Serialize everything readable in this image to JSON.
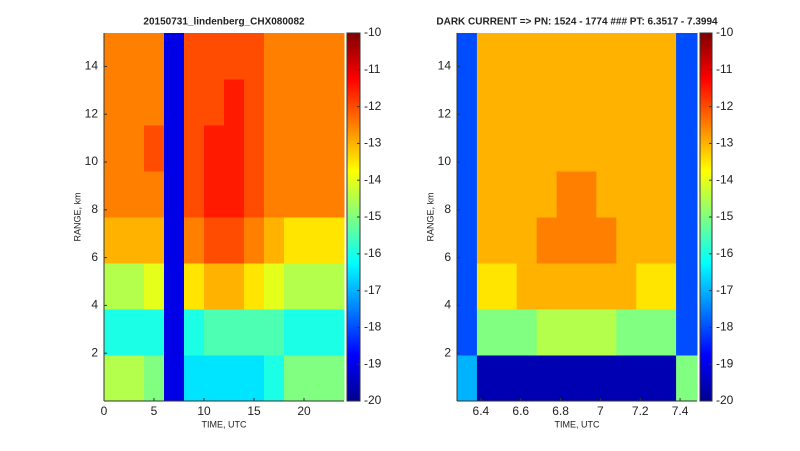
{
  "chart_data": [
    {
      "type": "heatmap",
      "title": "20150731_lindenberg_CHX080082",
      "x_label": "TIME, UTC",
      "y_label": "RANGE, km",
      "xlim": [
        0,
        24
      ],
      "xticks": [
        0,
        5,
        10,
        15,
        20
      ],
      "ylim": [
        0,
        15.4
      ],
      "yticks": [
        2,
        4,
        6,
        8,
        10,
        12,
        14
      ],
      "clim": [
        -20,
        -10
      ],
      "cticks": [
        -10,
        -11,
        -12,
        -13,
        -14,
        -15,
        -16,
        -17,
        -18,
        -19,
        -20
      ],
      "colormap": "jet",
      "x_edges": [
        0,
        2,
        4,
        6,
        8,
        10,
        12,
        14,
        16,
        18,
        20,
        22,
        24
      ],
      "y_edges": [
        0,
        1.925,
        3.85,
        5.775,
        7.7,
        9.625,
        11.55,
        13.475,
        15.4
      ],
      "z": [
        [
          -14.5,
          -14.5,
          -15,
          -19,
          -16.5,
          -16.5,
          -16.5,
          -16.5,
          -16,
          -15,
          -15,
          -15
        ],
        [
          -16,
          -16,
          -16,
          -19,
          -16,
          -15.5,
          -15.5,
          -15.5,
          -15.5,
          -16,
          -16,
          -16
        ],
        [
          -14.5,
          -14.5,
          -14,
          -19,
          -13.5,
          -13,
          -13,
          -13.5,
          -14,
          -14.5,
          -14.5,
          -14.5
        ],
        [
          -13,
          -13,
          -13,
          -19,
          -12.5,
          -12,
          -12,
          -12.5,
          -13,
          -13.5,
          -13.5,
          -13.5
        ],
        [
          -12.5,
          -12.5,
          -12.5,
          -19,
          -12,
          -11.5,
          -11.5,
          -12,
          -12.5,
          -12.5,
          -12.5,
          -12.5
        ],
        [
          -12.5,
          -12.5,
          -12,
          -19,
          -12,
          -11.5,
          -11.5,
          -12,
          -12.5,
          -12.5,
          -12.5,
          -12.5
        ],
        [
          -12.5,
          -12.5,
          -12.5,
          -19,
          -12,
          -12,
          -11.5,
          -12,
          -12.5,
          -12.5,
          -12.5,
          -12.5
        ],
        [
          -12.5,
          -12.5,
          -12.5,
          -19,
          -12,
          -12,
          -12,
          -12,
          -12.5,
          -12.5,
          -12.5,
          -12.5
        ]
      ]
    },
    {
      "type": "heatmap",
      "title": "DARK CURRENT => PN: 1524 - 1774   ###   PT: 6.3517 - 7.3994",
      "x_label": "TIME, UTC",
      "y_label": "RANGE, km",
      "xlim": [
        6.28,
        7.485
      ],
      "xticks": [
        6.4,
        6.6,
        6.8,
        7,
        7.2,
        7.4
      ],
      "ylim": [
        0,
        15.4
      ],
      "yticks": [
        2,
        4,
        6,
        8,
        10,
        12,
        14
      ],
      "clim": [
        -20,
        -10
      ],
      "cticks": [
        -10,
        -11,
        -12,
        -13,
        -14,
        -15,
        -16,
        -17,
        -18,
        -19,
        -20
      ],
      "colormap": "jet",
      "x_edges": [
        6.28,
        6.38,
        6.48,
        6.58,
        6.68,
        6.78,
        6.88,
        6.98,
        7.08,
        7.18,
        7.28,
        7.38,
        7.485
      ],
      "y_edges": [
        0,
        1.925,
        3.85,
        5.775,
        7.7,
        9.625,
        11.55,
        13.475,
        15.4
      ],
      "z": [
        [
          -17,
          -19.5,
          -19.5,
          -19.5,
          -19.5,
          -19.5,
          -19.5,
          -19.5,
          -19.5,
          -19.5,
          -19.5,
          -15
        ],
        [
          -18,
          -15,
          -15,
          -15,
          -14.5,
          -14.5,
          -14.5,
          -14.5,
          -15,
          -15,
          -15,
          -18
        ],
        [
          -18,
          -13.5,
          -13.5,
          -13,
          -13,
          -13,
          -13,
          -13,
          -13,
          -13.5,
          -13.5,
          -18
        ],
        [
          -18,
          -13,
          -13,
          -13,
          -12.5,
          -12.5,
          -12.5,
          -12.5,
          -13,
          -13,
          -13,
          -18
        ],
        [
          -18,
          -13,
          -13,
          -13,
          -13,
          -12.5,
          -12.5,
          -13,
          -13,
          -13,
          -13,
          -18
        ],
        [
          -18,
          -13,
          -13,
          -13,
          -13,
          -13,
          -13,
          -13,
          -13,
          -13,
          -13,
          -18
        ],
        [
          -18,
          -13,
          -13,
          -13,
          -13,
          -13,
          -13,
          -13,
          -13,
          -13,
          -13,
          -18
        ],
        [
          -18,
          -13,
          -13,
          -13,
          -13,
          -13,
          -13,
          -13,
          -13,
          -13,
          -13,
          -18
        ]
      ]
    }
  ]
}
